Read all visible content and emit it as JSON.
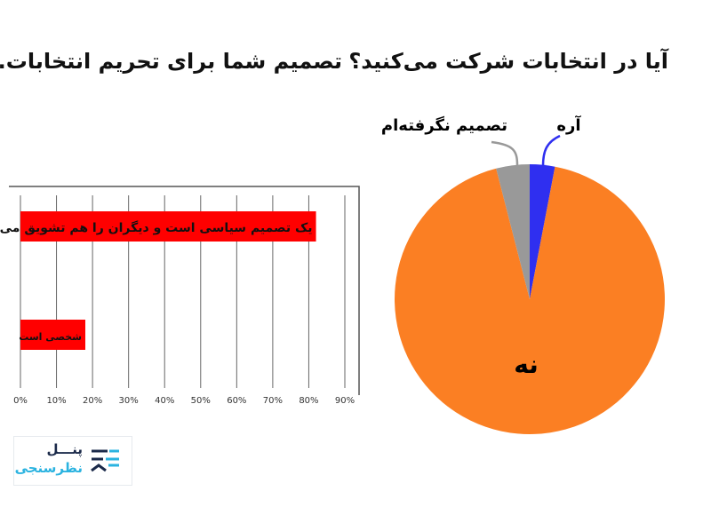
{
  "chart_data": [
    {
      "type": "pie",
      "title": "آیا در انتخابات شرکت می‌کنید؟",
      "slices": [
        {
          "label": "آره",
          "value": 3,
          "color": "#2f2ff0"
        },
        {
          "label": "نه",
          "value": 93,
          "color": "#fb7f23"
        },
        {
          "label": "تصمیم نگرفته‌ام",
          "value": 4,
          "color": "#999999"
        }
      ]
    },
    {
      "type": "bar",
      "orientation": "horizontal",
      "title": "تصمیم شما برای تحریم انتخابات...",
      "categories": [
        "یک تصمیم سیاسی است و دیگران را هم تشویق می‌کنید",
        "شخصی است"
      ],
      "values": [
        82,
        18
      ],
      "color": "#ff0000",
      "xlim": [
        0,
        90
      ],
      "ticks": [
        "0%",
        "10%",
        "20%",
        "30%",
        "40%",
        "50%",
        "60%",
        "70%",
        "80%",
        "90%"
      ],
      "grid": true
    }
  ],
  "logo": {
    "line1": "پنـــل",
    "line2": "نظرسنجی",
    "colors": [
      "#1b2a4a",
      "#2bb3e0"
    ]
  }
}
